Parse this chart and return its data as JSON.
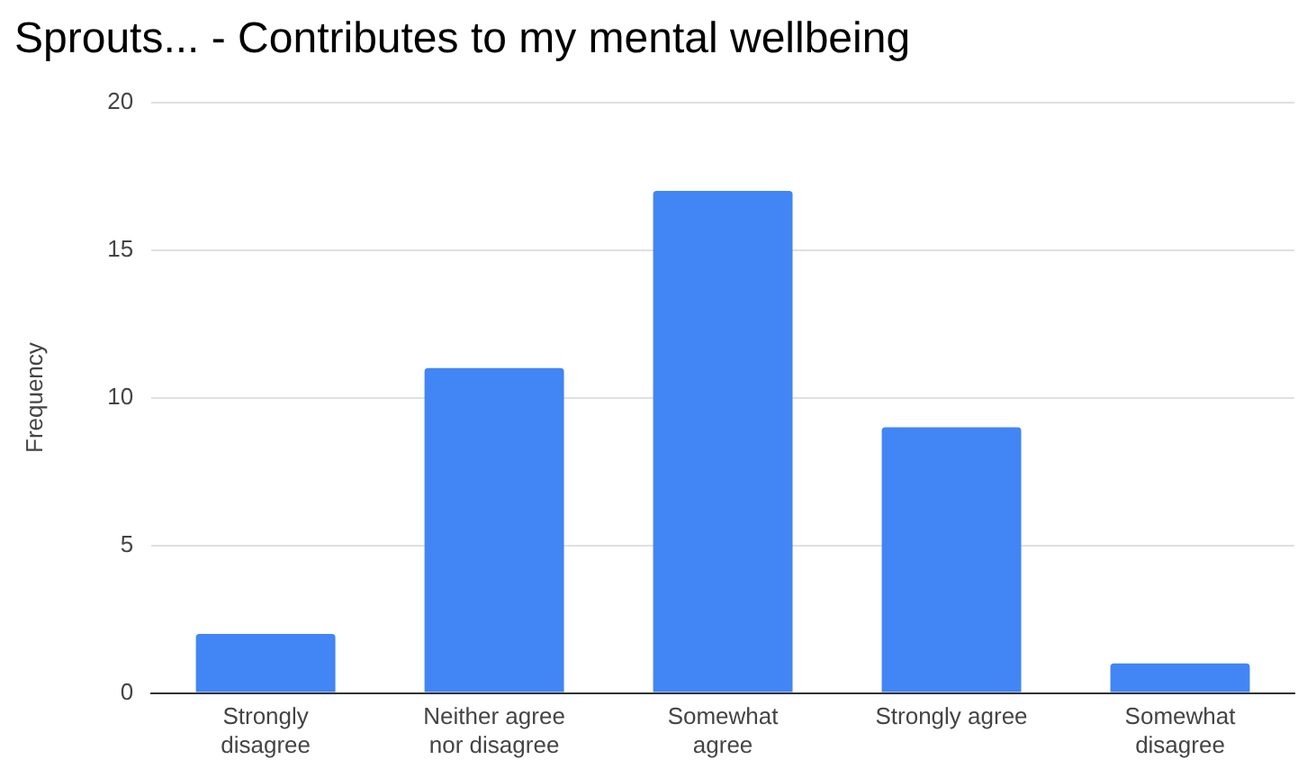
{
  "chart_data": {
    "type": "bar",
    "title": "Sprouts... - Contributes to my mental wellbeing",
    "ylabel": "Frequency",
    "categories": [
      "Strongly disagree",
      "Neither agree nor disagree",
      "Somewhat agree",
      "Strongly agree",
      "Somewhat disagree"
    ],
    "values": [
      2,
      11,
      17,
      9,
      1
    ],
    "color": "#4285f4",
    "ylim": [
      0,
      20
    ],
    "yticks": [
      0,
      5,
      10,
      15,
      20
    ],
    "grid": "y",
    "legend": false
  }
}
